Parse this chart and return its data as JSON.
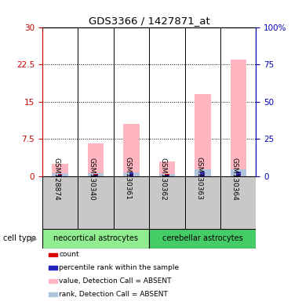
{
  "title": "GDS3366 / 1427871_at",
  "samples": [
    "GSM128874",
    "GSM130340",
    "GSM130361",
    "GSM130362",
    "GSM130363",
    "GSM130364"
  ],
  "groups": [
    {
      "name": "neocortical astrocytes",
      "count": 3,
      "color": "#90EE90"
    },
    {
      "name": "cerebellar astrocytes",
      "count": 3,
      "color": "#44CC66"
    }
  ],
  "value_bars": [
    2.5,
    6.5,
    10.5,
    3.0,
    16.5,
    23.5
  ],
  "rank_bars": [
    0.5,
    0.5,
    0.8,
    0.4,
    1.4,
    1.4
  ],
  "count_bars": [
    0.4,
    0.4,
    0.4,
    0.4,
    0.4,
    0.4
  ],
  "percentile_bars": [
    0.25,
    0.25,
    0.7,
    0.25,
    0.9,
    0.9
  ],
  "ylim_left": [
    0,
    30
  ],
  "ylim_right": [
    0,
    100
  ],
  "yticks_left": [
    0,
    7.5,
    15,
    22.5,
    30
  ],
  "yticks_right": [
    0,
    25,
    50,
    75,
    100
  ],
  "ytick_labels_left": [
    "0",
    "7.5",
    "15",
    "22.5",
    "30"
  ],
  "ytick_labels_right": [
    "0",
    "25",
    "50",
    "75",
    "100%"
  ],
  "left_axis_color": "#CC0000",
  "right_axis_color": "#0000BB",
  "value_bar_color": "#FFB6C1",
  "rank_bar_color": "#B0C4DE",
  "count_color": "#DD0000",
  "percentile_color": "#2222BB",
  "bg_color": "#C8C8C8",
  "group1_color": "#90EE90",
  "group2_color": "#44CC66",
  "legend_items": [
    {
      "color": "#DD0000",
      "label": "count"
    },
    {
      "color": "#2222BB",
      "label": "percentile rank within the sample"
    },
    {
      "color": "#FFB6C1",
      "label": "value, Detection Call = ABSENT"
    },
    {
      "color": "#B0C4DE",
      "label": "rank, Detection Call = ABSENT"
    }
  ]
}
